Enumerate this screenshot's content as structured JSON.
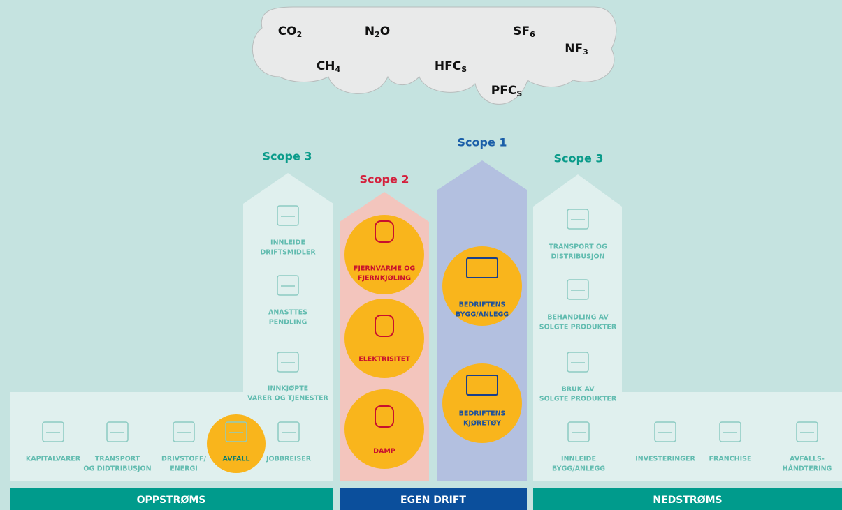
{
  "cloud": {
    "gases": [
      {
        "base": "CO",
        "sub": "2"
      },
      {
        "base": "CH",
        "sub": "4"
      },
      {
        "base": "N",
        "sub": "2",
        "rest": "O"
      },
      {
        "base": "HFC",
        "sub": "S"
      },
      {
        "base": "SF",
        "sub": "6"
      },
      {
        "base": "PFC",
        "sub": "S"
      },
      {
        "base": "NF",
        "sub": "3"
      }
    ]
  },
  "upstream": {
    "scope": "Scope 3",
    "vertical_items": [
      [
        "INNLEIDE",
        "DRIFTSMIDLER"
      ],
      [
        "ANASTTES",
        "PENDLING"
      ],
      [
        "INNKJØPTE",
        "VARER OG TJENESTER"
      ]
    ],
    "horizontal_items": [
      [
        "KAPITALVARER"
      ],
      [
        "TRANSPORT",
        "OG DIDTRIBUSJON"
      ],
      [
        "DRIVSTOFF/",
        "ENERGI"
      ],
      [
        "AVFALL"
      ],
      [
        "JOBBREISER"
      ]
    ],
    "footer": "OPPSTRØMS"
  },
  "scope2": {
    "scope": "Scope 2",
    "items": [
      [
        "FJERNVARME OG",
        "FJERNKJØLING"
      ],
      [
        "ELEKTRISITET"
      ],
      [
        "DAMP"
      ]
    ]
  },
  "scope1": {
    "scope": "Scope 1",
    "items": [
      [
        "BEDRIFTENS",
        "BYGG/ANLEGG"
      ],
      [
        "BEDRIFTENS",
        "KJØRETØY"
      ]
    ]
  },
  "own_footer": "EGEN DRIFT",
  "downstream": {
    "scope": "Scope 3",
    "vertical_items": [
      [
        "TRANSPORT OG",
        "DISTRIBUSJON"
      ],
      [
        "BEHANDLING AV",
        "SOLGTE PRODUKTER"
      ],
      [
        "BRUK AV",
        "SOLGTE PRODUKTER"
      ]
    ],
    "horizontal_items": [
      [
        "INNLEIDE",
        "BYGG/ANLEGG"
      ],
      [
        "INVESTERINGER"
      ],
      [
        "FRANCHISE"
      ],
      [
        "AVFALLS-",
        "HÅNDTERING"
      ]
    ],
    "footer": "NEDSTRØMS"
  }
}
